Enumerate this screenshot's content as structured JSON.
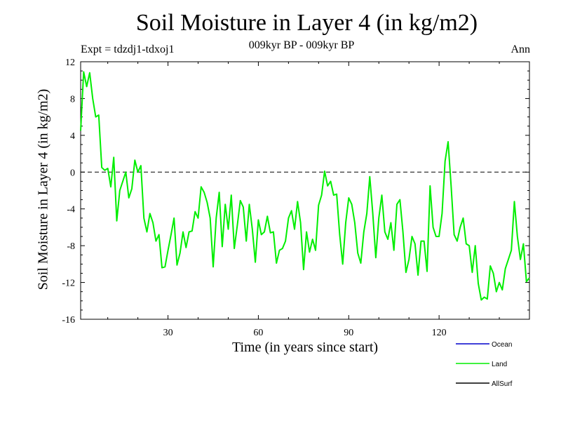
{
  "chart_data": {
    "type": "line",
    "title": "Soil Moisture in Layer 4 (in kg/m2)",
    "subtitle": "009kyr BP - 009kyr BP",
    "experiment": "Expt = tdzdj1-tdxoj1",
    "season": "Ann",
    "xlabel": "Time (in years since start)",
    "ylabel": "Soil Moisture in Layer 4 (in kg/m2)",
    "xlim": [
      1,
      150
    ],
    "ylim": [
      -16,
      12
    ],
    "xticks": [
      30,
      60,
      90,
      120
    ],
    "yticks": [
      12,
      8,
      4,
      0,
      -4,
      -8,
      -12,
      -16
    ],
    "zero_line": "dashed",
    "legend": [
      {
        "name": "Ocean",
        "color": "#0000cc"
      },
      {
        "name": "Land",
        "color": "#00ee00"
      },
      {
        "name": "AllSurf",
        "color": "#000000"
      }
    ],
    "series": [
      {
        "name": "Land",
        "color": "#00ee00",
        "x": [
          1,
          2,
          3,
          4,
          5,
          6,
          7,
          8,
          9,
          10,
          11,
          12,
          13,
          14,
          15,
          16,
          17,
          18,
          19,
          20,
          21,
          22,
          23,
          24,
          25,
          26,
          27,
          28,
          29,
          30,
          31,
          32,
          33,
          34,
          35,
          36,
          37,
          38,
          39,
          40,
          41,
          42,
          43,
          44,
          45,
          46,
          47,
          48,
          49,
          50,
          51,
          52,
          53,
          54,
          55,
          56,
          57,
          58,
          59,
          60,
          61,
          62,
          63,
          64,
          65,
          66,
          67,
          68,
          69,
          70,
          71,
          72,
          73,
          74,
          75,
          76,
          77,
          78,
          79,
          80,
          81,
          82,
          83,
          84,
          85,
          86,
          87,
          88,
          89,
          90,
          91,
          92,
          93,
          94,
          95,
          96,
          97,
          98,
          99,
          100,
          101,
          102,
          103,
          104,
          105,
          106,
          107,
          108,
          109,
          110,
          111,
          112,
          113,
          114,
          115,
          116,
          117,
          118,
          119,
          120,
          121,
          122,
          123,
          124,
          125,
          126,
          127,
          128,
          129,
          130,
          131,
          132,
          133,
          134,
          135,
          136,
          137,
          138,
          139,
          140,
          141,
          142,
          143,
          144,
          145,
          146,
          147,
          148,
          149,
          150
        ],
        "values": [
          4.5,
          10.9,
          9.3,
          10.8,
          8.0,
          6.0,
          6.2,
          0.5,
          0.2,
          0.4,
          -1.6,
          1.6,
          -5.3,
          -2.0,
          -1.0,
          0.0,
          -2.8,
          -1.8,
          1.3,
          0.0,
          0.7,
          -5.0,
          -6.5,
          -4.5,
          -5.5,
          -7.5,
          -6.8,
          -10.4,
          -10.3,
          -8.5,
          -6.8,
          -5.0,
          -10.1,
          -8.8,
          -6.5,
          -8.2,
          -6.5,
          -6.4,
          -4.3,
          -5.0,
          -1.6,
          -2.2,
          -3.3,
          -5.0,
          -10.3,
          -5.0,
          -2.2,
          -8.1,
          -3.5,
          -6.2,
          -2.5,
          -8.3,
          -5.8,
          -3.1,
          -3.8,
          -7.5,
          -3.5,
          -6.2,
          -9.8,
          -5.2,
          -6.8,
          -6.5,
          -4.8,
          -6.6,
          -6.5,
          -9.9,
          -8.5,
          -8.3,
          -7.5,
          -5.0,
          -4.2,
          -6.2,
          -3.2,
          -5.5,
          -10.6,
          -6.5,
          -8.7,
          -7.3,
          -8.5,
          -3.6,
          -2.5,
          0.1,
          -1.5,
          -1.0,
          -2.5,
          -2.4,
          -6.8,
          -10.0,
          -5.5,
          -2.8,
          -3.5,
          -5.5,
          -8.8,
          -9.9,
          -6.5,
          -4.5,
          -0.5,
          -4.5,
          -9.3,
          -5.0,
          -2.5,
          -6.5,
          -7.3,
          -5.5,
          -8.5,
          -3.5,
          -3.0,
          -6.5,
          -10.9,
          -9.5,
          -7.0,
          -7.8,
          -11.2,
          -7.5,
          -7.5,
          -10.8,
          -1.5,
          -6.0,
          -7.0,
          -7.0,
          -4.5,
          1.2,
          3.3,
          -1.5,
          -6.8,
          -7.5,
          -6.0,
          -5.0,
          -7.8,
          -8.0,
          -10.9,
          -8.0,
          -12.1,
          -13.9,
          -13.6,
          -13.8,
          -10.2,
          -11.0,
          -13.0,
          -12.0,
          -12.8,
          -10.5,
          -9.5,
          -8.5,
          -3.2,
          -7.0,
          -9.5,
          -7.8,
          -11.9,
          -11.5
        ]
      }
    ]
  }
}
